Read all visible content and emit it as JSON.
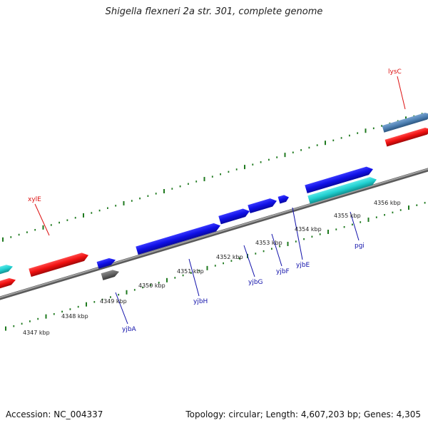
{
  "title": "Shigella flexneri 2a str. 301, complete genome",
  "footer": {
    "accession": "Accession: NC_004337",
    "info": "Topology: circular; Length: 4,607,203 bp; Genes: 4,305"
  },
  "colors": {
    "backbone": "#7f7f7f",
    "tick": "#1f7a1f",
    "gene_blue": "#1010e6",
    "gene_red": "#f01010",
    "gene_cyan": "#20d0d0",
    "gene_steel": "#4f82b4",
    "gene_gray": "#666666",
    "label_red": "#dd1111",
    "label_blue": "#1010aa"
  },
  "kbp_labels": [
    {
      "id": "4347",
      "text": "4347 kbp"
    },
    {
      "id": "4348",
      "text": "4348 kbp"
    },
    {
      "id": "4349",
      "text": "4349 kbp"
    },
    {
      "id": "4350",
      "text": "4350 kbp"
    },
    {
      "id": "4351",
      "text": "4351 kbp"
    },
    {
      "id": "4352",
      "text": "4352 kbp"
    },
    {
      "id": "4353",
      "text": "4353 kbp"
    },
    {
      "id": "4354",
      "text": "4354 kbp"
    },
    {
      "id": "4355",
      "text": "4355 kbp"
    },
    {
      "id": "4356",
      "text": "4356 kbp"
    }
  ],
  "gene_labels": [
    {
      "id": "lysC",
      "text": "lysC",
      "color": "red"
    },
    {
      "id": "xylE",
      "text": "xylE",
      "color": "red"
    },
    {
      "id": "yjbA",
      "text": "yjbA",
      "color": "blue"
    },
    {
      "id": "yjbH",
      "text": "yjbH",
      "color": "blue"
    },
    {
      "id": "yjbG",
      "text": "yjbG",
      "color": "blue"
    },
    {
      "id": "yjbF",
      "text": "yjbF",
      "color": "blue"
    },
    {
      "id": "yjbE",
      "text": "yjbE",
      "color": "blue"
    },
    {
      "id": "pgi",
      "text": "pgi",
      "color": "blue"
    }
  ]
}
